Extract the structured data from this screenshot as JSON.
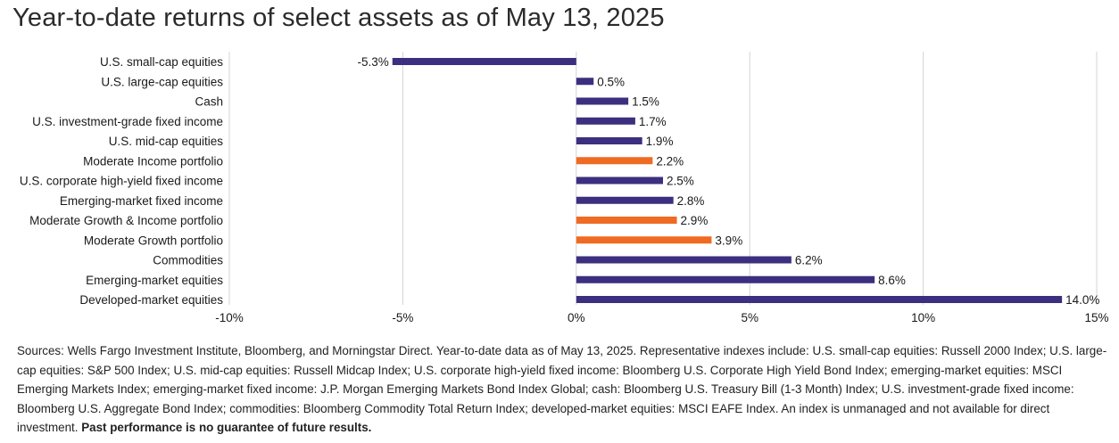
{
  "title": "Year-to-date returns of select assets as of May 13, 2025",
  "chart_data": {
    "type": "bar",
    "orientation": "horizontal",
    "title": "Year-to-date returns of select assets as of May 13, 2025",
    "xlabel": "",
    "ylabel": "",
    "xlim": [
      -10,
      15
    ],
    "x_ticks": [
      -10,
      -5,
      0,
      5,
      10,
      15
    ],
    "x_tick_labels": [
      "-10%",
      "-5%",
      "0%",
      "5%",
      "10%",
      "15%"
    ],
    "grid": "vertical",
    "categories": [
      "U.S. small-cap equities",
      "U.S. large-cap equities",
      "Cash",
      "U.S. investment-grade fixed income",
      "U.S. mid-cap equities",
      "Moderate Income portfolio",
      "U.S. corporate high-yield fixed income",
      "Emerging-market fixed income",
      "Moderate Growth & Income portfolio",
      "Moderate Growth portfolio",
      "Commodities",
      "Emerging-market equities",
      "Developed-market equities"
    ],
    "values": [
      -5.3,
      0.5,
      1.5,
      1.7,
      1.9,
      2.2,
      2.5,
      2.8,
      2.9,
      3.9,
      6.2,
      8.6,
      14.0
    ],
    "value_labels": [
      "-5.3%",
      "0.5%",
      "1.5%",
      "1.7%",
      "1.9%",
      "2.2%",
      "2.5%",
      "2.8%",
      "2.9%",
      "3.9%",
      "6.2%",
      "8.6%",
      "14.0%"
    ],
    "bar_colors": [
      "#3d2f7f",
      "#3d2f7f",
      "#3d2f7f",
      "#3d2f7f",
      "#3d2f7f",
      "#ef6a22",
      "#3d2f7f",
      "#3d2f7f",
      "#ef6a22",
      "#ef6a22",
      "#3d2f7f",
      "#3d2f7f",
      "#3d2f7f"
    ],
    "colors": {
      "asset": "#3d2f7f",
      "portfolio": "#ef6a22",
      "grid": "#d4d4d4",
      "text": "#1a1a1a"
    }
  },
  "footnote": {
    "text": "Sources: Wells Fargo Investment Institute, Bloomberg, and Morningstar Direct. Year-to-date data as of May 13, 2025. Representative indexes include: U.S. small-cap equities: Russell 2000 Index; U.S. large-cap equities: S&P 500 Index; U.S. mid-cap equities: Russell Midcap Index; U.S. corporate high-yield fixed income: Bloomberg U.S. Corporate High Yield Bond Index; emerging-market equities: MSCI Emerging Markets Index; emerging-market fixed income: J.P. Morgan Emerging Markets Bond Index Global; cash: Bloomberg U.S. Treasury Bill (1-3 Month) Index; U.S. investment-grade fixed income: Bloomberg U.S. Aggregate Bond Index; commodities: Bloomberg Commodity Total Return Index; developed-market equities: MSCI EAFE Index. An index is unmanaged and not available for direct investment.",
    "bold_text": "Past performance is no guarantee of future results."
  }
}
